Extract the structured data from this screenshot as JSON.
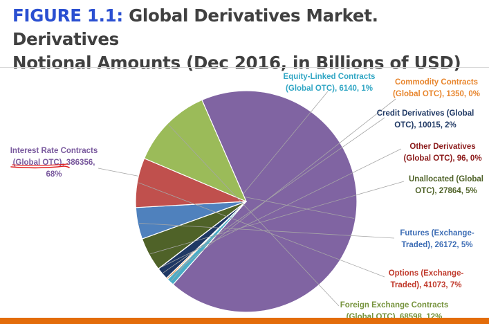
{
  "title": {
    "figure_label": "FIGURE 1.1:",
    "line1": " Global Derivatives Market. Derivatives",
    "line2": "Notional Amounts (Dec 2016, in Billions of USD)"
  },
  "chart_data": {
    "type": "pie",
    "title": "Global Derivatives Market. Derivatives Notional Amounts (Dec 2016, in Billions of USD)",
    "slices": [
      {
        "name": "Interest Rate Contracts (Global OTC)",
        "value": 386356,
        "percent": "68%",
        "color": "#8064a2",
        "label_lines": [
          "Interest Rate Contracts",
          "(Global OTC), 386356,",
          "68%"
        ]
      },
      {
        "name": "Equity-Linked Contracts (Global OTC)",
        "value": 6140,
        "percent": "1%",
        "color": "#4bacc6",
        "label_lines": [
          "Equity-Linked Contracts",
          "(Global OTC), 6140, 1%"
        ]
      },
      {
        "name": "Commodity Contracts (Global OTC)",
        "value": 1350,
        "percent": "0%",
        "color": "#f79646",
        "label_lines": [
          "Commodity Contracts",
          "(Global OTC), 1350, 0%"
        ]
      },
      {
        "name": "Credit Derivatives (Global OTC)",
        "value": 10015,
        "percent": "2%",
        "color": "#1f3864",
        "label_lines": [
          "Credit Derivatives (Global",
          "OTC), 10015, 2%"
        ]
      },
      {
        "name": "Other Derivatives (Global OTC)",
        "value": 96,
        "percent": "0%",
        "color": "#8b1a1a",
        "label_lines": [
          "Other Derivatives",
          "(Global OTC), 96, 0%"
        ]
      },
      {
        "name": "Unallocated (Global OTC)",
        "value": 27864,
        "percent": "5%",
        "color": "#4f6228",
        "label_lines": [
          "Unallocated (Global",
          "OTC), 27864, 5%"
        ]
      },
      {
        "name": "Futures (Exchange-Traded)",
        "value": 26172,
        "percent": "5%",
        "color": "#4f81bd",
        "label_lines": [
          "Futures (Exchange-",
          "Traded), 26172, 5%"
        ]
      },
      {
        "name": "Options (Exchange-Traded)",
        "value": 41073,
        "percent": "7%",
        "color": "#c0504d",
        "label_lines": [
          "Options (Exchange-",
          "Traded), 41073, 7%"
        ]
      },
      {
        "name": "Foreign Exchange Contracts (Global OTC)",
        "value": 68598,
        "percent": "12%",
        "color": "#9bbb59",
        "label_lines": [
          "Foreign Exchange Contracts",
          "(Global OTC), 68598, 12%"
        ]
      }
    ],
    "label_colors": [
      "#7a5a9e",
      "#31a6c4",
      "#e8862e",
      "#1f3864",
      "#8b1a1a",
      "#4f6228",
      "#3d6db5",
      "#c0392b",
      "#76933c"
    ],
    "leader_line_color": "#a6a6a6",
    "annotation_color": "#e02020"
  },
  "bottom_bar_color": "#e36c0a"
}
